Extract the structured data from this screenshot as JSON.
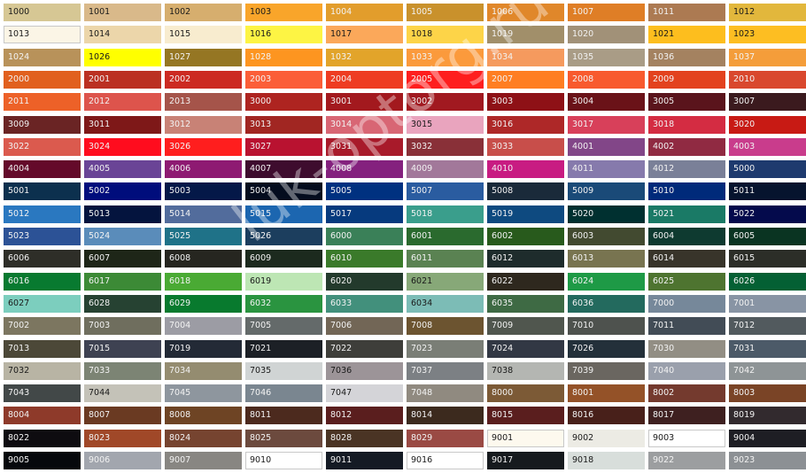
{
  "watermark": "luk-optorg.ru",
  "rows": [
    [
      [
        "1000",
        "#d6c794",
        1
      ],
      [
        "1001",
        "#d9b98a",
        1
      ],
      [
        "1002",
        "#d6ae6e",
        1
      ],
      [
        "1003",
        "#f9a52a",
        1
      ],
      [
        "1004",
        "#e29d2c",
        0
      ],
      [
        "1005",
        "#c9912c",
        0
      ],
      [
        "1006",
        "#e0872a",
        0
      ],
      [
        "1007",
        "#df7e26",
        0
      ],
      [
        "1011",
        "#ac7a52",
        0
      ],
      [
        "1012",
        "#e2b73c",
        1
      ]
    ],
    [
      [
        "1013",
        "#fbf5e6",
        2
      ],
      [
        "1014",
        "#ecd6aa",
        1
      ],
      [
        "1015",
        "#f8eccf",
        1
      ],
      [
        "1016",
        "#fdf444",
        1
      ],
      [
        "1017",
        "#fba85a",
        1
      ],
      [
        "1018",
        "#fdd448",
        1
      ],
      [
        "1019",
        "#a18f6a",
        0
      ],
      [
        "1020",
        "#a19178",
        0
      ],
      [
        "1021",
        "#fdbe1e",
        1
      ],
      [
        "1023",
        "#fdbe22",
        1
      ]
    ],
    [
      [
        "1024",
        "#b8925a",
        0
      ],
      [
        "1026",
        "#ffff00",
        1
      ],
      [
        "1027",
        "#957623",
        0
      ],
      [
        "1028",
        "#fd9520",
        0
      ],
      [
        "1032",
        "#e2a42a",
        0
      ],
      [
        "1033",
        "#fb9a3c",
        0
      ],
      [
        "1034",
        "#f59a5e",
        0
      ],
      [
        "1035",
        "#a99c86",
        0
      ],
      [
        "1036",
        "#a48260",
        0
      ],
      [
        "1037",
        "#f49d3a",
        0
      ]
    ],
    [
      [
        "2000",
        "#e1601e",
        0
      ],
      [
        "2001",
        "#bb3022",
        0
      ],
      [
        "2002",
        "#cc2a22",
        0
      ],
      [
        "2003",
        "#fb5e38",
        0
      ],
      [
        "2004",
        "#ee3c22",
        0
      ],
      [
        "2005",
        "#fe1e1e",
        0
      ],
      [
        "2007",
        "#ff7e22",
        0
      ],
      [
        "2008",
        "#f85a2e",
        0
      ],
      [
        "2009",
        "#e3421e",
        0
      ],
      [
        "2010",
        "#d9482e",
        0
      ]
    ],
    [
      [
        "2011",
        "#ed6128",
        0
      ],
      [
        "2012",
        "#dd544c",
        0
      ],
      [
        "2013",
        "#a5544a",
        0
      ],
      [
        "3000",
        "#ae2420",
        0
      ],
      [
        "3001",
        "#a3191e",
        0
      ],
      [
        "3002",
        "#a11920",
        0
      ],
      [
        "3003",
        "#8e1116",
        0
      ],
      [
        "3004",
        "#6a1218",
        0
      ],
      [
        "3005",
        "#5a141c",
        0
      ],
      [
        "3007",
        "#3b1a1e",
        0
      ]
    ],
    [
      [
        "3009",
        "#6a2424",
        0
      ],
      [
        "3011",
        "#7e1818",
        0
      ],
      [
        "3012",
        "#c88276",
        0
      ],
      [
        "3013",
        "#a12622",
        0
      ],
      [
        "3014",
        "#d86674",
        0
      ],
      [
        "3015",
        "#e9a4be",
        1
      ],
      [
        "3016",
        "#ae2828",
        0
      ],
      [
        "3017",
        "#d8405a",
        0
      ],
      [
        "3018",
        "#d42c42",
        0
      ],
      [
        "3020",
        "#c81a14",
        0
      ]
    ],
    [
      [
        "3022",
        "#db5a4e",
        0
      ],
      [
        "3024",
        "#ff0c1e",
        0
      ],
      [
        "3026",
        "#ff1e1e",
        0
      ],
      [
        "3027",
        "#b91230",
        0
      ],
      [
        "3031",
        "#a81a2a",
        0
      ],
      [
        "3032",
        "#893038",
        0
      ],
      [
        "3033",
        "#c84e4a",
        0
      ],
      [
        "4001",
        "#824688",
        0
      ],
      [
        "4002",
        "#902a42",
        0
      ],
      [
        "4003",
        "#c93c8c",
        0
      ]
    ],
    [
      [
        "4004",
        "#640a2a",
        0
      ],
      [
        "4005",
        "#6a4496",
        0
      ],
      [
        "4006",
        "#8e1a72",
        0
      ],
      [
        "4007",
        "#3e0c2e",
        0
      ],
      [
        "4008",
        "#84217e",
        0
      ],
      [
        "4009",
        "#a2789a",
        0
      ],
      [
        "4010",
        "#c81c82",
        0
      ],
      [
        "4011",
        "#867aac",
        0
      ],
      [
        "4012",
        "#7a8098",
        0
      ],
      [
        "5000",
        "#1e3a6e",
        0
      ]
    ],
    [
      [
        "5001",
        "#0c304e",
        0
      ],
      [
        "5002",
        "#000d7c",
        0
      ],
      [
        "5003",
        "#041848",
        0
      ],
      [
        "5004",
        "#040c1e",
        0
      ],
      [
        "5005",
        "#003180",
        0
      ],
      [
        "5007",
        "#2a5ca0",
        0
      ],
      [
        "5008",
        "#1a2a3a",
        0
      ],
      [
        "5009",
        "#1a4a78",
        0
      ],
      [
        "5010",
        "#002a7a",
        0
      ],
      [
        "5011",
        "#06142e",
        0
      ]
    ],
    [
      [
        "5012",
        "#2a78c0",
        0
      ],
      [
        "5013",
        "#04143e",
        0
      ],
      [
        "5014",
        "#526c9c",
        0
      ],
      [
        "5015",
        "#1c66b0",
        0
      ],
      [
        "5017",
        "#063a7e",
        0
      ],
      [
        "5018",
        "#3a9e8c",
        0
      ],
      [
        "5019",
        "#0e4a80",
        0
      ],
      [
        "5020",
        "#003030",
        0
      ],
      [
        "5021",
        "#1a7a66",
        0
      ],
      [
        "5022",
        "#040a4c",
        0
      ]
    ],
    [
      [
        "5023",
        "#2c5296",
        0
      ],
      [
        "5024",
        "#5a8cba",
        0
      ],
      [
        "5025",
        "#1f7288",
        0
      ],
      [
        "5026",
        "#1c3e5e",
        0
      ],
      [
        "6000",
        "#3a8058",
        0
      ],
      [
        "6001",
        "#2a6a2e",
        0
      ],
      [
        "6002",
        "#285a1c",
        0
      ],
      [
        "6003",
        "#424a30",
        0
      ],
      [
        "6004",
        "#0e3a30",
        0
      ],
      [
        "6005",
        "#0a3422",
        0
      ]
    ],
    [
      [
        "6006",
        "#2e2e28",
        0
      ],
      [
        "6007",
        "#1e2618",
        0
      ],
      [
        "6008",
        "#262620",
        0
      ],
      [
        "6009",
        "#1c2a1e",
        0
      ],
      [
        "6010",
        "#3a7a2a",
        0
      ],
      [
        "6011",
        "#5a8252",
        0
      ],
      [
        "6012",
        "#1e2c2c",
        0
      ],
      [
        "6013",
        "#787450",
        0
      ],
      [
        "6014",
        "#38342a",
        0
      ],
      [
        "6015",
        "#2c2e28",
        0
      ]
    ],
    [
      [
        "6016",
        "#087a30",
        0
      ],
      [
        "6017",
        "#3c8a36",
        0
      ],
      [
        "6018",
        "#4aaa34",
        0
      ],
      [
        "6019",
        "#bde6b4",
        1
      ],
      [
        "6020",
        "#233a2c",
        0
      ],
      [
        "6021",
        "#87a878",
        1
      ],
      [
        "6022",
        "#2e281e",
        0
      ],
      [
        "6024",
        "#1e9a46",
        0
      ],
      [
        "6025",
        "#4e7430",
        0
      ],
      [
        "6026",
        "#046034",
        0
      ]
    ],
    [
      [
        "6027",
        "#7ccebe",
        1
      ],
      [
        "6028",
        "#264232",
        0
      ],
      [
        "6029",
        "#087a2e",
        0
      ],
      [
        "6032",
        "#2a9440",
        0
      ],
      [
        "6033",
        "#42907c",
        0
      ],
      [
        "6034",
        "#7cbcb6",
        1
      ],
      [
        "6035",
        "#3e6a44",
        0
      ],
      [
        "6036",
        "#236a5e",
        0
      ],
      [
        "7000",
        "#76889a",
        0
      ],
      [
        "7001",
        "#8894a4",
        0
      ]
    ],
    [
      [
        "7002",
        "#7c7660",
        0
      ],
      [
        "7003",
        "#6f6e5e",
        0
      ],
      [
        "7004",
        "#9c9ca4",
        0
      ],
      [
        "7005",
        "#646a6a",
        0
      ],
      [
        "7006",
        "#726656",
        0
      ],
      [
        "7008",
        "#6c5430",
        0
      ],
      [
        "7009",
        "#50564e",
        0
      ],
      [
        "7010",
        "#4e524e",
        0
      ],
      [
        "7011",
        "#424c56",
        0
      ],
      [
        "7012",
        "#525a5e",
        0
      ]
    ],
    [
      [
        "7013",
        "#4c4838",
        0
      ],
      [
        "7015",
        "#3e4252",
        0
      ],
      [
        "7019",
        "#232a36",
        0
      ],
      [
        "7021",
        "#1c2026",
        0
      ],
      [
        "7022",
        "#3e3e3a",
        0
      ],
      [
        "7023",
        "#7a7e76",
        0
      ],
      [
        "7024",
        "#323844",
        0
      ],
      [
        "7026",
        "#23303a",
        0
      ],
      [
        "7030",
        "#928e84",
        0
      ],
      [
        "7031",
        "#4c5a68",
        0
      ]
    ],
    [
      [
        "7032",
        "#b8b4a4",
        1
      ],
      [
        "7033",
        "#7c8474",
        0
      ],
      [
        "7034",
        "#948c70",
        0
      ],
      [
        "7035",
        "#d0d4d4",
        1
      ],
      [
        "7036",
        "#9c9498",
        1
      ],
      [
        "7037",
        "#7c8084",
        0
      ],
      [
        "7038",
        "#b4b6b2",
        1
      ],
      [
        "7039",
        "#6a6660",
        0
      ],
      [
        "7040",
        "#9aa0ac",
        0
      ],
      [
        "7042",
        "#8e9496",
        0
      ]
    ],
    [
      [
        "7043",
        "#424848",
        0
      ],
      [
        "7044",
        "#c4c2b8",
        1
      ],
      [
        "7045",
        "#8e969e",
        0
      ],
      [
        "7046",
        "#7a8690",
        0
      ],
      [
        "7047",
        "#d4d4d8",
        1
      ],
      [
        "7048",
        "#908a80",
        0
      ],
      [
        "8000",
        "#7c5a36",
        0
      ],
      [
        "8001",
        "#945228",
        0
      ],
      [
        "8002",
        "#743a2e",
        0
      ],
      [
        "8003",
        "#7a4426",
        0
      ]
    ],
    [
      [
        "8004",
        "#8e3a2a",
        0
      ],
      [
        "8007",
        "#6a3a22",
        0
      ],
      [
        "8008",
        "#6e4424",
        0
      ],
      [
        "8011",
        "#4c2a1e",
        0
      ],
      [
        "8012",
        "#5a1e1e",
        0
      ],
      [
        "8014",
        "#3c2a1e",
        0
      ],
      [
        "8015",
        "#5a1e1e",
        0
      ],
      [
        "8016",
        "#48201a",
        0
      ],
      [
        "8017",
        "#3e2020",
        0
      ],
      [
        "8019",
        "#322a2e",
        0
      ]
    ],
    [
      [
        "8022",
        "#0e0c10",
        0
      ],
      [
        "8023",
        "#a04828",
        0
      ],
      [
        "8024",
        "#764430",
        0
      ],
      [
        "8025",
        "#6c4a3e",
        0
      ],
      [
        "8028",
        "#4a3424",
        0
      ],
      [
        "8029",
        "#9a4a44",
        0
      ],
      [
        "9001",
        "#fdf9ee",
        2
      ],
      [
        "9002",
        "#ecebe4",
        1
      ],
      [
        "9003",
        "#ffffff",
        2
      ],
      [
        "9004",
        "#1e1e24",
        0
      ]
    ],
    [
      [
        "9005",
        "#06080c",
        0
      ],
      [
        "9006",
        "#a2a6ae",
        0
      ],
      [
        "9007",
        "#888682",
        0
      ],
      [
        "9010",
        "#ffffff",
        2
      ],
      [
        "9011",
        "#141a24",
        0
      ],
      [
        "9016",
        "#ffffff",
        2
      ],
      [
        "9017",
        "#161a1e",
        0
      ],
      [
        "9018",
        "#d8dedb",
        1
      ],
      [
        "9022",
        "#9c9ea0",
        0
      ],
      [
        "9023",
        "#8c9094",
        0
      ]
    ]
  ]
}
